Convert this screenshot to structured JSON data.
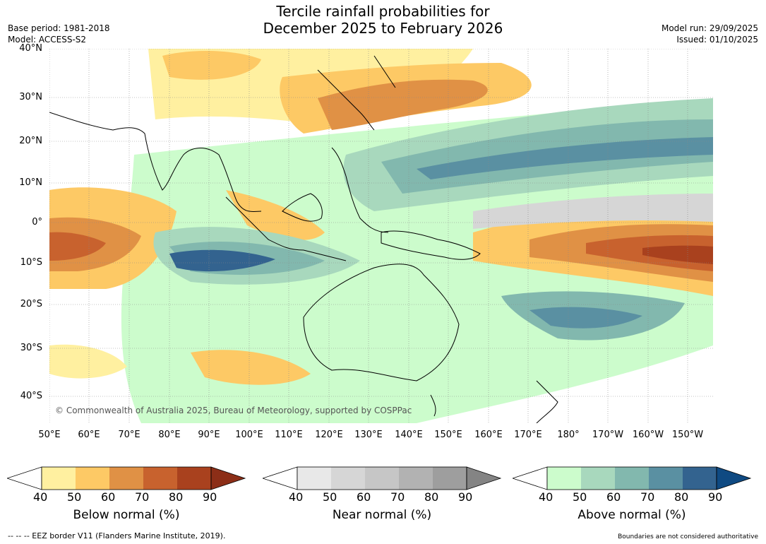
{
  "header": {
    "title_line1": "Tercile rainfall probabilities for",
    "title_line2": "December 2025 to February 2026",
    "base_period": "Base period: 1981-2018",
    "model": "Model: ACCESS-S2",
    "model_run": "Model run: 29/09/2025",
    "issued": "Issued: 01/10/2025"
  },
  "map": {
    "lat_labels": [
      "40°N",
      "30°N",
      "20°N",
      "10°N",
      "0°",
      "10°S",
      "20°S",
      "30°S",
      "40°S"
    ],
    "lon_labels": [
      "50°E",
      "60°E",
      "70°E",
      "80°E",
      "90°E",
      "100°E",
      "110°E",
      "120°E",
      "130°E",
      "140°E",
      "150°E",
      "160°E",
      "170°E",
      "180°",
      "170°W",
      "160°W",
      "150°W"
    ],
    "copyright": "© Commonwealth of Australia 2025, Bureau of Meteorology, supported by COSPPac",
    "colors": {
      "below": [
        "#fff0a0",
        "#fdc965",
        "#e09145",
        "#c8622e",
        "#a9411e",
        "#8c2e17"
      ],
      "near": [
        "#e8e8e8",
        "#d6d6d6",
        "#c6c6c6",
        "#b2b2b2",
        "#9e9e9e",
        "#848484"
      ],
      "above": [
        "#ccfccc",
        "#a8d8bd",
        "#82b8ae",
        "#5a90a2",
        "#33638f",
        "#0f4a82"
      ]
    }
  },
  "colorbars": [
    {
      "title": "Below normal (%)",
      "ticks": [
        "40",
        "50",
        "60",
        "70",
        "80",
        "90"
      ]
    },
    {
      "title": "Near normal (%)",
      "ticks": [
        "40",
        "50",
        "60",
        "70",
        "80",
        "90"
      ]
    },
    {
      "title": "Above normal (%)",
      "ticks": [
        "40",
        "50",
        "60",
        "70",
        "80",
        "90"
      ]
    }
  ],
  "footer": {
    "eez": "--  --  -- EEZ border V11 (Flanders Marine Institute, 2019).",
    "disclaimer": "Boundaries are not considered authoritative"
  }
}
